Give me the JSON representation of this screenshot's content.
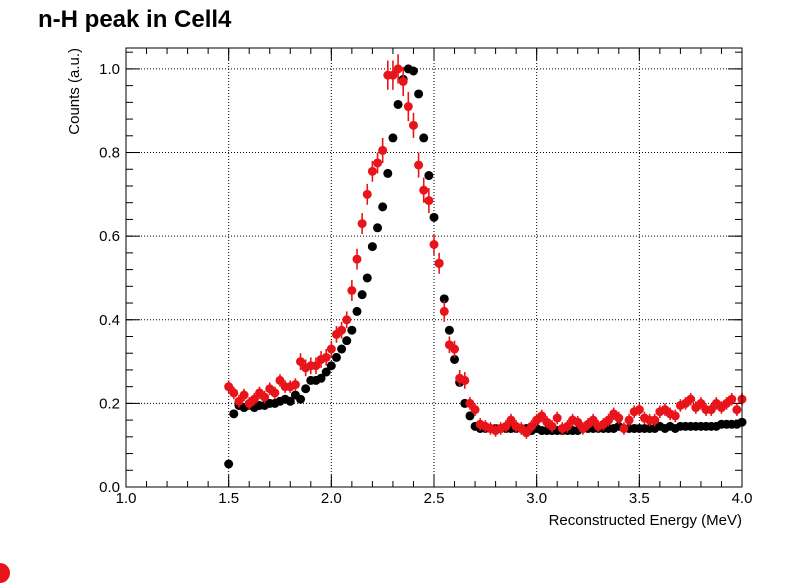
{
  "chart_data": {
    "type": "scatter",
    "title": "n-H peak in Cell4",
    "xlabel": "Reconstructed Energy (MeV)",
    "ylabel": "Counts (a.u.)",
    "xlim": [
      1.0,
      4.0
    ],
    "ylim": [
      0.0,
      1.05
    ],
    "grid": true,
    "x_ticks": [
      "1.0",
      "1.5",
      "2.0",
      "2.5",
      "3.0",
      "3.5",
      "4.0"
    ],
    "y_ticks": [
      "0.0",
      "0.2",
      "0.4",
      "0.6",
      "0.8",
      "1.0"
    ],
    "series": [
      {
        "color": "#000000",
        "x": [
          1.5,
          1.525,
          1.55,
          1.575,
          1.6,
          1.625,
          1.65,
          1.675,
          1.7,
          1.725,
          1.75,
          1.775,
          1.8,
          1.825,
          1.85,
          1.875,
          1.9,
          1.925,
          1.95,
          1.975,
          2.0,
          2.025,
          2.05,
          2.075,
          2.1,
          2.125,
          2.15,
          2.175,
          2.2,
          2.225,
          2.25,
          2.275,
          2.3,
          2.325,
          2.35,
          2.375,
          2.4,
          2.425,
          2.45,
          2.475,
          2.5,
          2.525,
          2.55,
          2.575,
          2.6,
          2.625,
          2.65,
          2.675,
          2.7,
          2.725,
          2.75,
          2.775,
          2.8,
          2.825,
          2.85,
          2.875,
          2.9,
          2.925,
          2.95,
          2.975,
          3.0,
          3.025,
          3.05,
          3.075,
          3.1,
          3.125,
          3.15,
          3.175,
          3.2,
          3.225,
          3.25,
          3.275,
          3.3,
          3.325,
          3.35,
          3.375,
          3.4,
          3.425,
          3.45,
          3.475,
          3.5,
          3.525,
          3.55,
          3.575,
          3.6,
          3.625,
          3.65,
          3.675,
          3.7,
          3.725,
          3.75,
          3.775,
          3.8,
          3.825,
          3.85,
          3.875,
          3.9,
          3.925,
          3.95,
          3.975,
          4.0
        ],
        "y": [
          0.055,
          0.175,
          0.195,
          0.19,
          0.195,
          0.19,
          0.195,
          0.195,
          0.2,
          0.2,
          0.205,
          0.21,
          0.205,
          0.22,
          0.21,
          0.235,
          0.255,
          0.255,
          0.26,
          0.275,
          0.29,
          0.31,
          0.33,
          0.35,
          0.375,
          0.42,
          0.46,
          0.5,
          0.575,
          0.62,
          0.67,
          0.75,
          0.835,
          0.915,
          0.975,
          1.0,
          0.995,
          0.94,
          0.835,
          0.745,
          0.645,
          0.535,
          0.45,
          0.375,
          0.305,
          0.25,
          0.2,
          0.17,
          0.145,
          0.14,
          0.14,
          0.14,
          0.14,
          0.14,
          0.14,
          0.14,
          0.14,
          0.14,
          0.14,
          0.135,
          0.14,
          0.135,
          0.135,
          0.135,
          0.135,
          0.135,
          0.135,
          0.135,
          0.135,
          0.14,
          0.14,
          0.14,
          0.14,
          0.14,
          0.14,
          0.14,
          0.145,
          0.14,
          0.14,
          0.14,
          0.14,
          0.14,
          0.14,
          0.14,
          0.145,
          0.14,
          0.145,
          0.14,
          0.145,
          0.145,
          0.145,
          0.145,
          0.145,
          0.145,
          0.145,
          0.145,
          0.15,
          0.15,
          0.15,
          0.15,
          0.155
        ]
      },
      {
        "color": "#e8141a",
        "x": [
          1.5,
          1.525,
          1.55,
          1.575,
          1.6,
          1.625,
          1.65,
          1.675,
          1.7,
          1.725,
          1.75,
          1.775,
          1.8,
          1.825,
          1.85,
          1.875,
          1.9,
          1.925,
          1.95,
          1.975,
          2.0,
          2.025,
          2.05,
          2.075,
          2.1,
          2.125,
          2.15,
          2.175,
          2.2,
          2.225,
          2.25,
          2.275,
          2.3,
          2.325,
          2.35,
          2.375,
          2.4,
          2.425,
          2.45,
          2.475,
          2.5,
          2.525,
          2.55,
          2.575,
          2.6,
          2.625,
          2.65,
          2.675,
          2.7,
          2.725,
          2.75,
          2.775,
          2.8,
          2.825,
          2.85,
          2.875,
          2.9,
          2.925,
          2.95,
          2.975,
          3.0,
          3.025,
          3.05,
          3.075,
          3.1,
          3.125,
          3.15,
          3.175,
          3.2,
          3.225,
          3.25,
          3.275,
          3.3,
          3.325,
          3.35,
          3.375,
          3.4,
          3.425,
          3.45,
          3.475,
          3.5,
          3.525,
          3.55,
          3.575,
          3.6,
          3.625,
          3.65,
          3.675,
          3.7,
          3.725,
          3.75,
          3.775,
          3.8,
          3.825,
          3.85,
          3.875,
          3.9,
          3.925,
          3.95,
          3.975,
          4.0
        ],
        "y": [
          0.24,
          0.225,
          0.205,
          0.22,
          0.2,
          0.21,
          0.225,
          0.215,
          0.235,
          0.225,
          0.255,
          0.24,
          0.24,
          0.245,
          0.3,
          0.285,
          0.29,
          0.29,
          0.305,
          0.31,
          0.33,
          0.365,
          0.375,
          0.4,
          0.47,
          0.545,
          0.63,
          0.7,
          0.755,
          0.775,
          0.805,
          0.985,
          0.985,
          1.0,
          0.97,
          0.91,
          0.865,
          0.77,
          0.71,
          0.685,
          0.58,
          0.535,
          0.42,
          0.34,
          0.33,
          0.26,
          0.255,
          0.2,
          0.185,
          0.15,
          0.145,
          0.14,
          0.135,
          0.14,
          0.145,
          0.16,
          0.145,
          0.14,
          0.13,
          0.145,
          0.16,
          0.17,
          0.155,
          0.145,
          0.165,
          0.14,
          0.145,
          0.16,
          0.155,
          0.14,
          0.15,
          0.16,
          0.145,
          0.15,
          0.16,
          0.175,
          0.165,
          0.14,
          0.16,
          0.18,
          0.185,
          0.165,
          0.16,
          0.16,
          0.18,
          0.185,
          0.175,
          0.17,
          0.195,
          0.2,
          0.21,
          0.19,
          0.2,
          0.185,
          0.185,
          0.2,
          0.19,
          0.2,
          0.21,
          0.185,
          0.21
        ],
        "yerr": [
          0.015,
          0.015,
          0.015,
          0.015,
          0.015,
          0.015,
          0.015,
          0.015,
          0.015,
          0.015,
          0.015,
          0.015,
          0.015,
          0.015,
          0.02,
          0.02,
          0.02,
          0.02,
          0.02,
          0.02,
          0.02,
          0.02,
          0.02,
          0.02,
          0.025,
          0.025,
          0.025,
          0.025,
          0.025,
          0.025,
          0.03,
          0.035,
          0.035,
          0.035,
          0.035,
          0.035,
          0.03,
          0.03,
          0.03,
          0.03,
          0.025,
          0.025,
          0.025,
          0.02,
          0.02,
          0.02,
          0.02,
          0.015,
          0.015,
          0.015,
          0.015,
          0.015,
          0.015,
          0.015,
          0.015,
          0.015,
          0.015,
          0.015,
          0.015,
          0.015,
          0.015,
          0.015,
          0.015,
          0.015,
          0.015,
          0.015,
          0.015,
          0.015,
          0.015,
          0.015,
          0.015,
          0.015,
          0.015,
          0.015,
          0.015,
          0.015,
          0.015,
          0.015,
          0.015,
          0.015,
          0.015,
          0.015,
          0.015,
          0.015,
          0.015,
          0.015,
          0.015,
          0.015,
          0.015,
          0.015,
          0.015,
          0.015,
          0.015,
          0.015,
          0.015,
          0.015,
          0.015,
          0.015,
          0.015,
          0.015,
          0.015
        ]
      }
    ]
  }
}
